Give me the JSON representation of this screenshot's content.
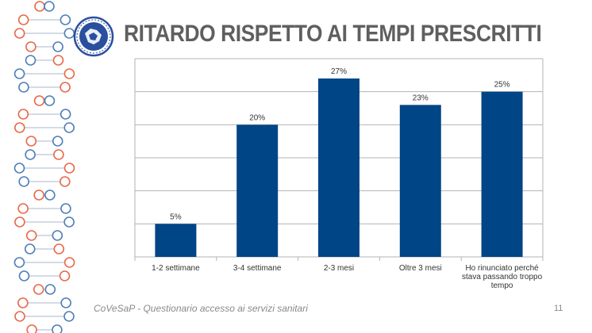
{
  "slide": {
    "title": "RITARDO RISPETTO AI TEMPI PRESCRITTI",
    "footer": "CoVeSaP - Questionario accesso ai servizi sanitari",
    "page_number": "11"
  },
  "chart_data": {
    "type": "bar",
    "title": "",
    "xlabel": "",
    "ylabel": "",
    "ylim": [
      0,
      30
    ],
    "grid": true,
    "categories": [
      "1-2 settimane",
      "3-4 settimane",
      "2-3 mesi",
      "Oltre 3 mesi",
      "Ho rinunciato perché stava passando troppo tempo"
    ],
    "values": [
      5,
      20,
      27,
      23,
      25
    ],
    "data_labels": [
      "5%",
      "20%",
      "27%",
      "23%",
      "25%"
    ],
    "bar_color": "#004586"
  },
  "colors": {
    "title": "#5f5f5f",
    "dna_orange": "#e8694a",
    "dna_blue": "#4f7fb8",
    "logo_blue": "#2a4f9e"
  }
}
